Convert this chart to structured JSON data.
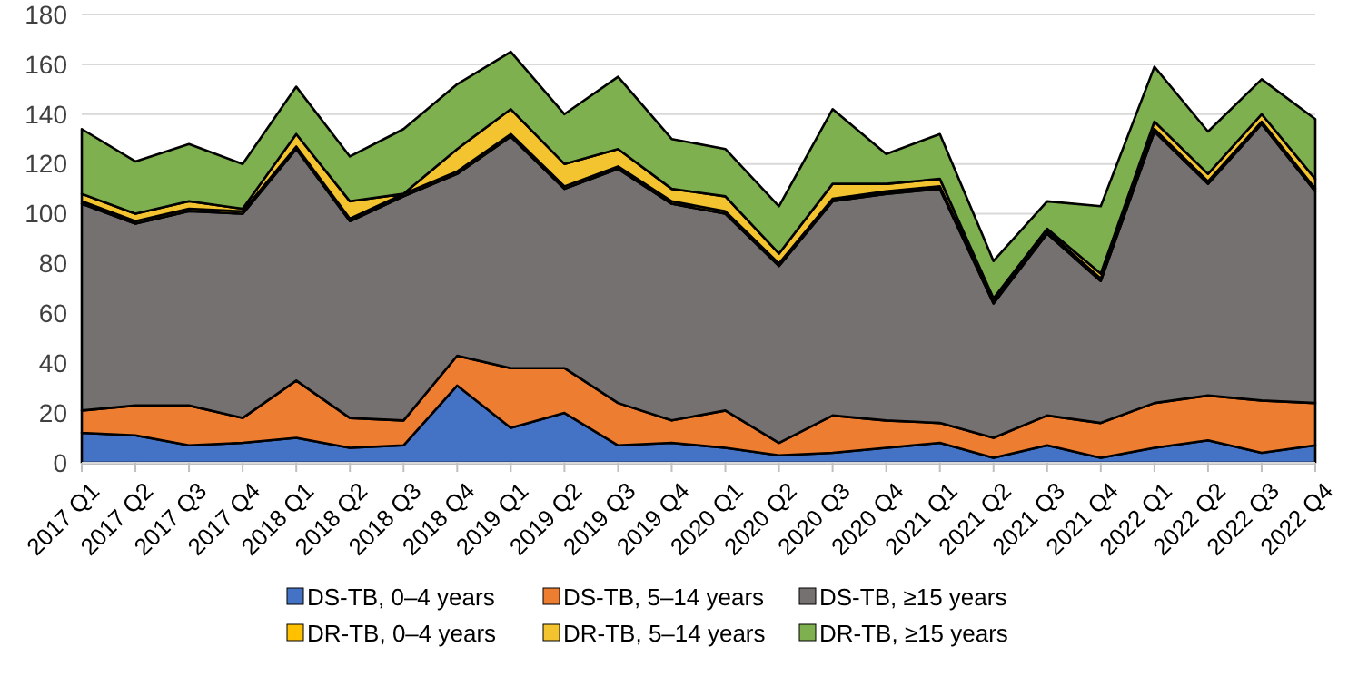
{
  "chart_data": {
    "type": "area",
    "stacked": true,
    "categories": [
      "2017 Q1",
      "2017 Q2",
      "2017 Q3",
      "2017 Q4",
      "2018 Q1",
      "2018 Q2",
      "2018 Q3",
      "2018 Q4",
      "2019 Q1",
      "2019 Q2",
      "2019 Q3",
      "2019 Q4",
      "2020 Q1",
      "2020 Q2",
      "2020 Q3",
      "2020 Q4",
      "2021 Q1",
      "2021 Q2",
      "2021 Q3",
      "2021 Q4",
      "2022 Q1",
      "2022 Q2",
      "2022 Q3",
      "2022 Q4"
    ],
    "series": [
      {
        "name": "DS-TB, 0–4 years",
        "color": "#4472c4",
        "values": [
          12,
          11,
          7,
          8,
          10,
          6,
          7,
          31,
          14,
          20,
          7,
          8,
          6,
          3,
          4,
          6,
          8,
          2,
          7,
          2,
          6,
          9,
          4,
          7
        ]
      },
      {
        "name": "DS-TB, 5–14 years",
        "color": "#ed7d31",
        "values": [
          9,
          12,
          16,
          10,
          23,
          12,
          10,
          12,
          24,
          18,
          17,
          9,
          15,
          5,
          15,
          11,
          8,
          8,
          12,
          14,
          18,
          18,
          21,
          17
        ]
      },
      {
        "name": "DS-TB, ≥15 years",
        "color": "#767171",
        "values": [
          83,
          73,
          78,
          82,
          93,
          79,
          90,
          73,
          93,
          72,
          94,
          87,
          79,
          71,
          86,
          91,
          94,
          54,
          73,
          57,
          109,
          85,
          111,
          85
        ]
      },
      {
        "name": "DR-TB, 0–4 years",
        "color": "#ffc000",
        "values": [
          1,
          1,
          1,
          1,
          1,
          1,
          1,
          1,
          1,
          1,
          1,
          1,
          1,
          1,
          1,
          1,
          1,
          1,
          1,
          1,
          1,
          1,
          1,
          1
        ]
      },
      {
        "name": "DR-TB, 5–14 years",
        "color": "#f4c430",
        "values": [
          3,
          3,
          3,
          1,
          5,
          7,
          0,
          9,
          10,
          9,
          7,
          5,
          6,
          4,
          6,
          3,
          3,
          1,
          1,
          2,
          3,
          3,
          3,
          4
        ]
      },
      {
        "name": "DR-TB, ≥15 years",
        "color": "#7fb050",
        "values": [
          26,
          21,
          23,
          18,
          19,
          18,
          26,
          26,
          23,
          20,
          29,
          20,
          19,
          19,
          30,
          12,
          18,
          15,
          11,
          27,
          22,
          17,
          14,
          24
        ]
      }
    ],
    "ylim": [
      0,
      180
    ],
    "yticks": [
      0,
      20,
      40,
      60,
      80,
      100,
      120,
      140,
      160,
      180
    ],
    "grid": "y",
    "legend": "bottom"
  }
}
